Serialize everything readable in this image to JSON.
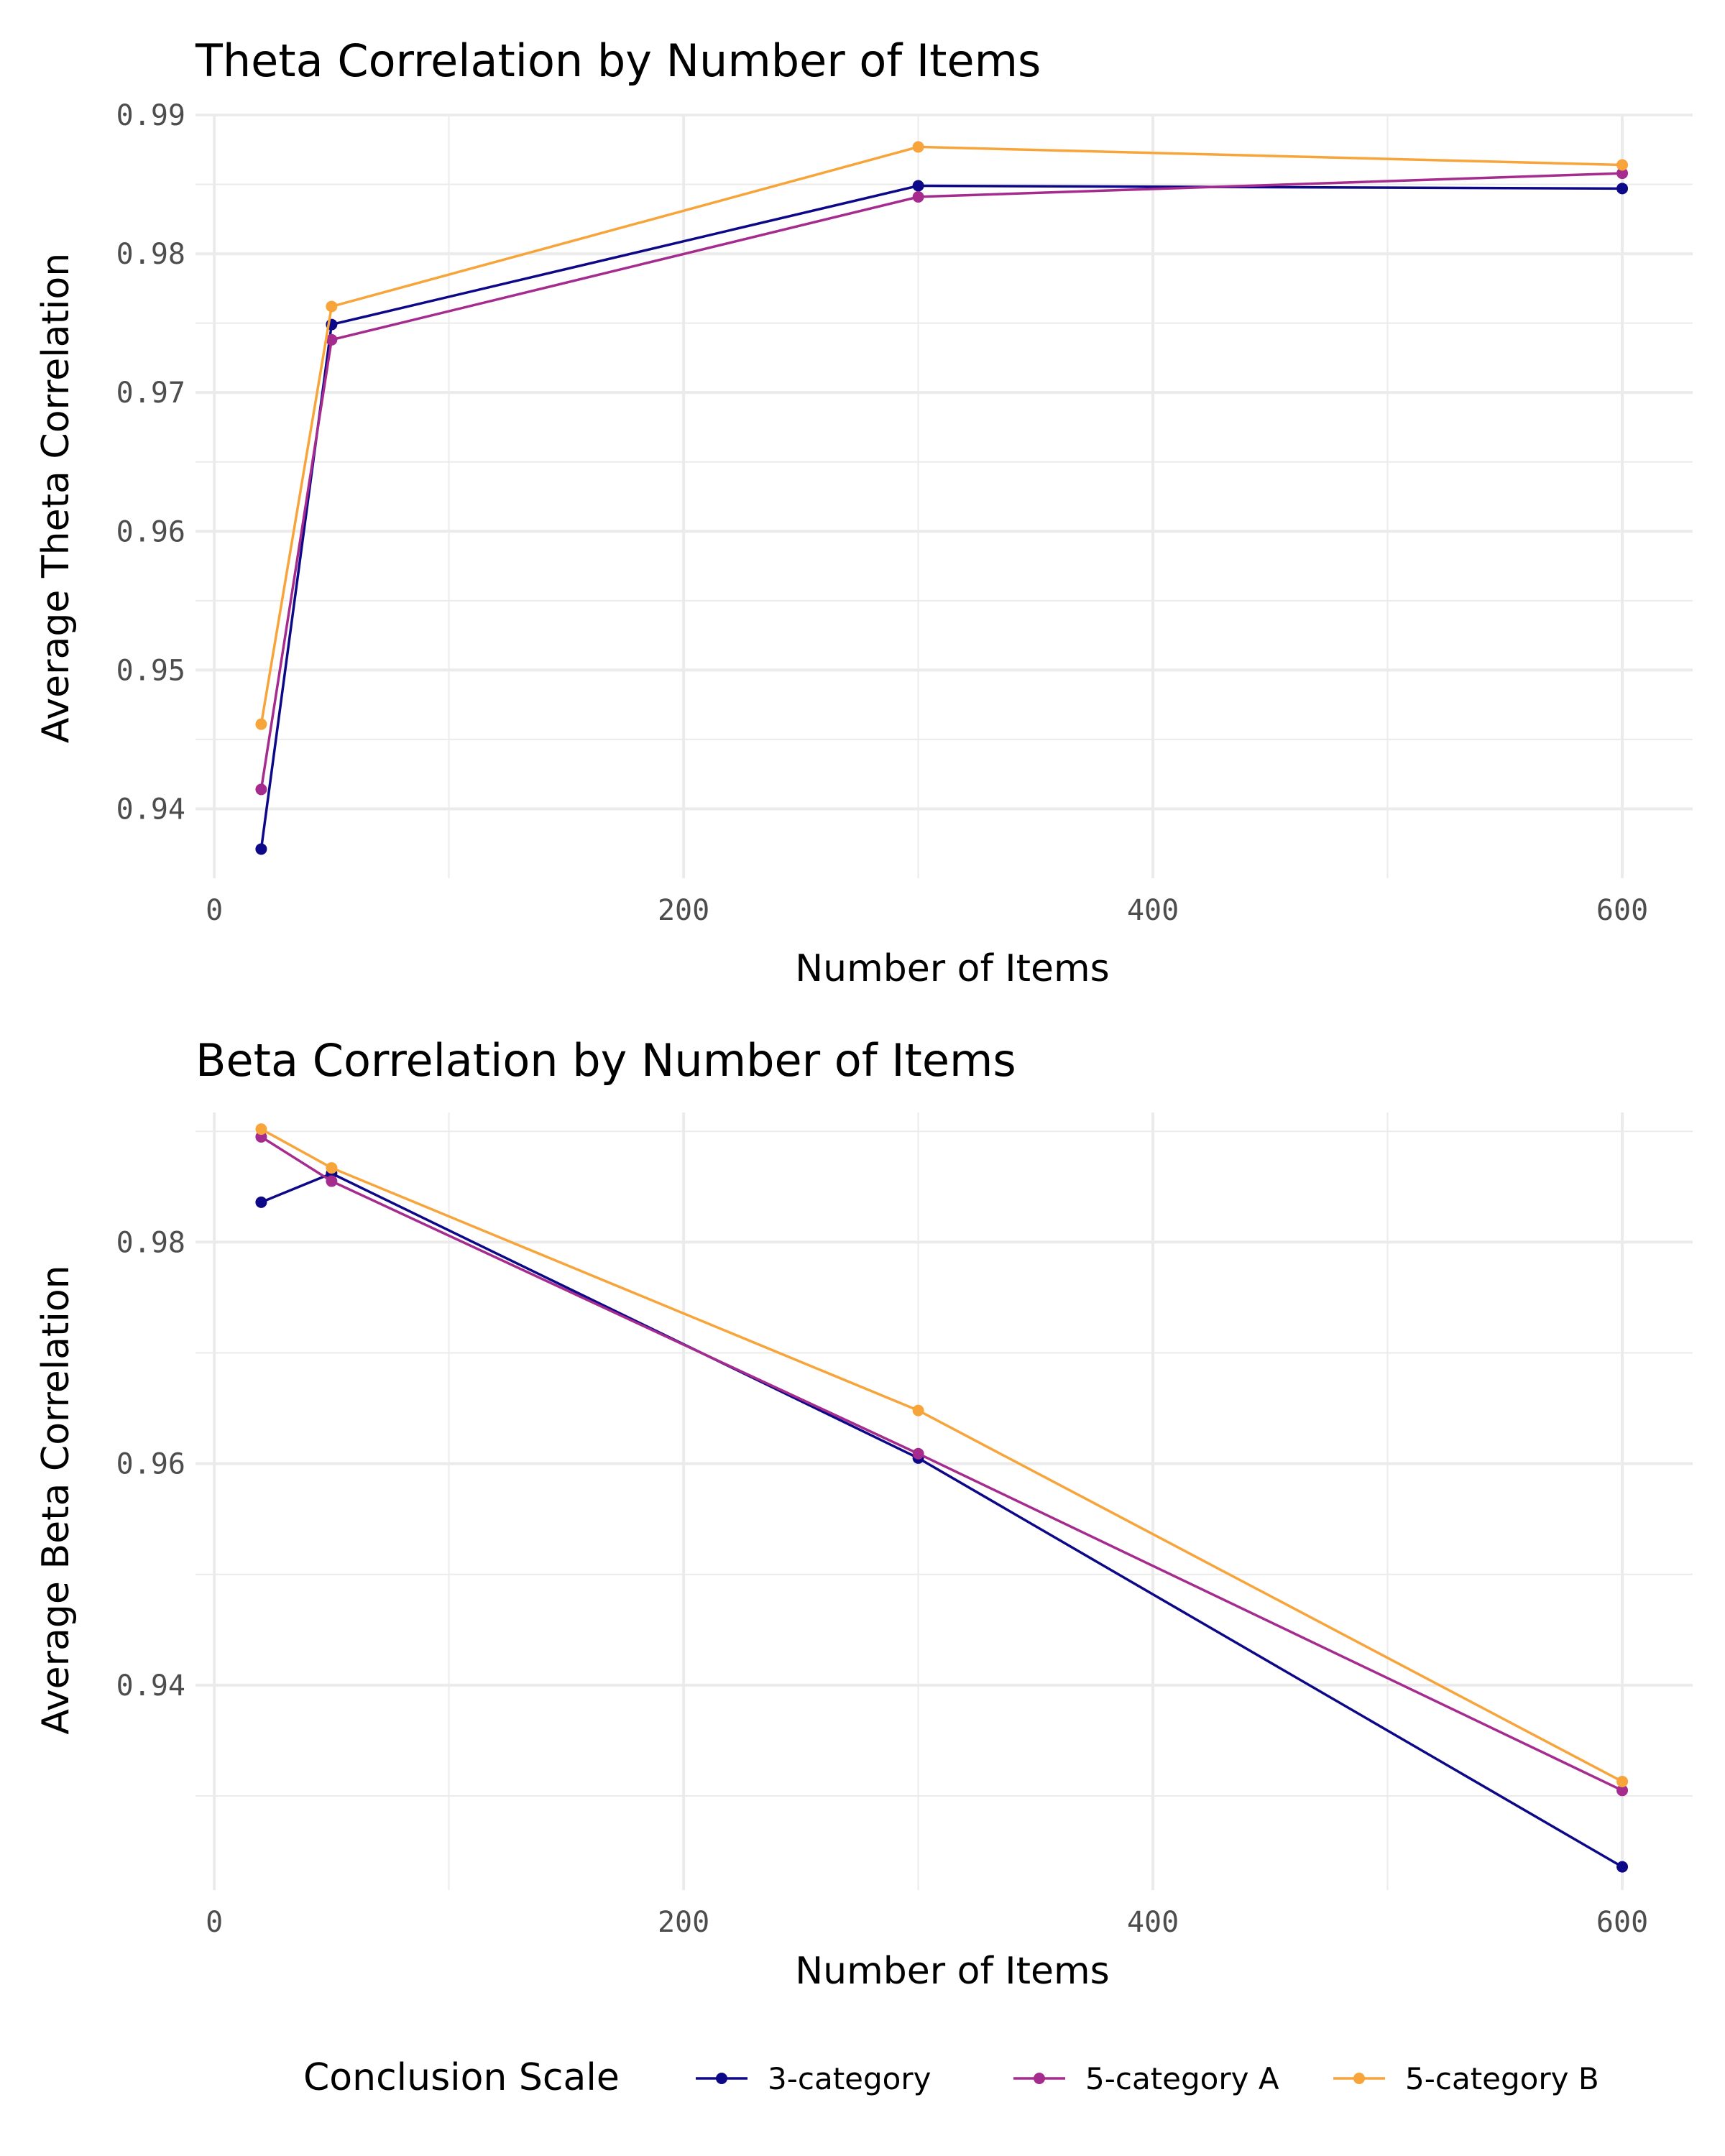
{
  "chart_data": [
    {
      "type": "line",
      "title": "Theta Correlation by Number of Items",
      "xlabel": "Number of Items",
      "ylabel": "Average Theta Correlation",
      "x": [
        20,
        50,
        300,
        600
      ],
      "xlim": [
        -8,
        630
      ],
      "ylim": [
        0.935,
        0.99
      ],
      "xticks": [
        0,
        200,
        400,
        600
      ],
      "xtick_labels": [
        "0",
        "200",
        "400",
        "600"
      ],
      "xminor": [
        100,
        300,
        500
      ],
      "yticks": [
        0.94,
        0.95,
        0.96,
        0.97,
        0.98,
        0.99
      ],
      "ytick_labels": [
        "0.94",
        "0.95",
        "0.96",
        "0.97",
        "0.98",
        "0.99"
      ],
      "yminor": [
        0.945,
        0.955,
        0.965,
        0.975,
        0.985
      ],
      "grid": true,
      "series": [
        {
          "name": "3-category",
          "color": "#0d0887",
          "values": [
            0.9371,
            0.9749,
            0.9849,
            0.9847
          ]
        },
        {
          "name": "5-category A",
          "color": "#a62b8e",
          "values": [
            0.9414,
            0.9738,
            0.9841,
            0.9858
          ]
        },
        {
          "name": "5-category B",
          "color": "#f7a43a",
          "values": [
            0.9461,
            0.9762,
            0.9877,
            0.9864
          ]
        }
      ]
    },
    {
      "type": "line",
      "title": "Beta Correlation by Number of Items",
      "xlabel": "Number of Items",
      "ylabel": "Average Beta Correlation",
      "x": [
        20,
        50,
        300,
        600
      ],
      "xlim": [
        -8,
        630
      ],
      "ylim": [
        0.9215,
        0.9917
      ],
      "xticks": [
        0,
        200,
        400,
        600
      ],
      "xtick_labels": [
        "0",
        "200",
        "400",
        "600"
      ],
      "xminor": [
        100,
        300,
        500
      ],
      "yticks": [
        0.94,
        0.96,
        0.98
      ],
      "ytick_labels": [
        "0.94",
        "0.96",
        "0.98"
      ],
      "yminor": [
        0.93,
        0.95,
        0.97,
        0.99
      ],
      "grid": true,
      "series": [
        {
          "name": "3-category",
          "color": "#0d0887",
          "values": [
            0.9836,
            0.9862,
            0.9605,
            0.9236
          ]
        },
        {
          "name": "5-category A",
          "color": "#a62b8e",
          "values": [
            0.9895,
            0.9855,
            0.9609,
            0.9305
          ]
        },
        {
          "name": "5-category B",
          "color": "#f7a43a",
          "values": [
            0.9902,
            0.9867,
            0.9648,
            0.9313
          ]
        }
      ]
    }
  ],
  "legend": {
    "title": "Conclusion Scale",
    "position": "bottom",
    "items": [
      {
        "label": "3-category",
        "color": "#0d0887"
      },
      {
        "label": "5-category A",
        "color": "#a62b8e"
      },
      {
        "label": "5-category B",
        "color": "#f7a43a"
      }
    ]
  }
}
